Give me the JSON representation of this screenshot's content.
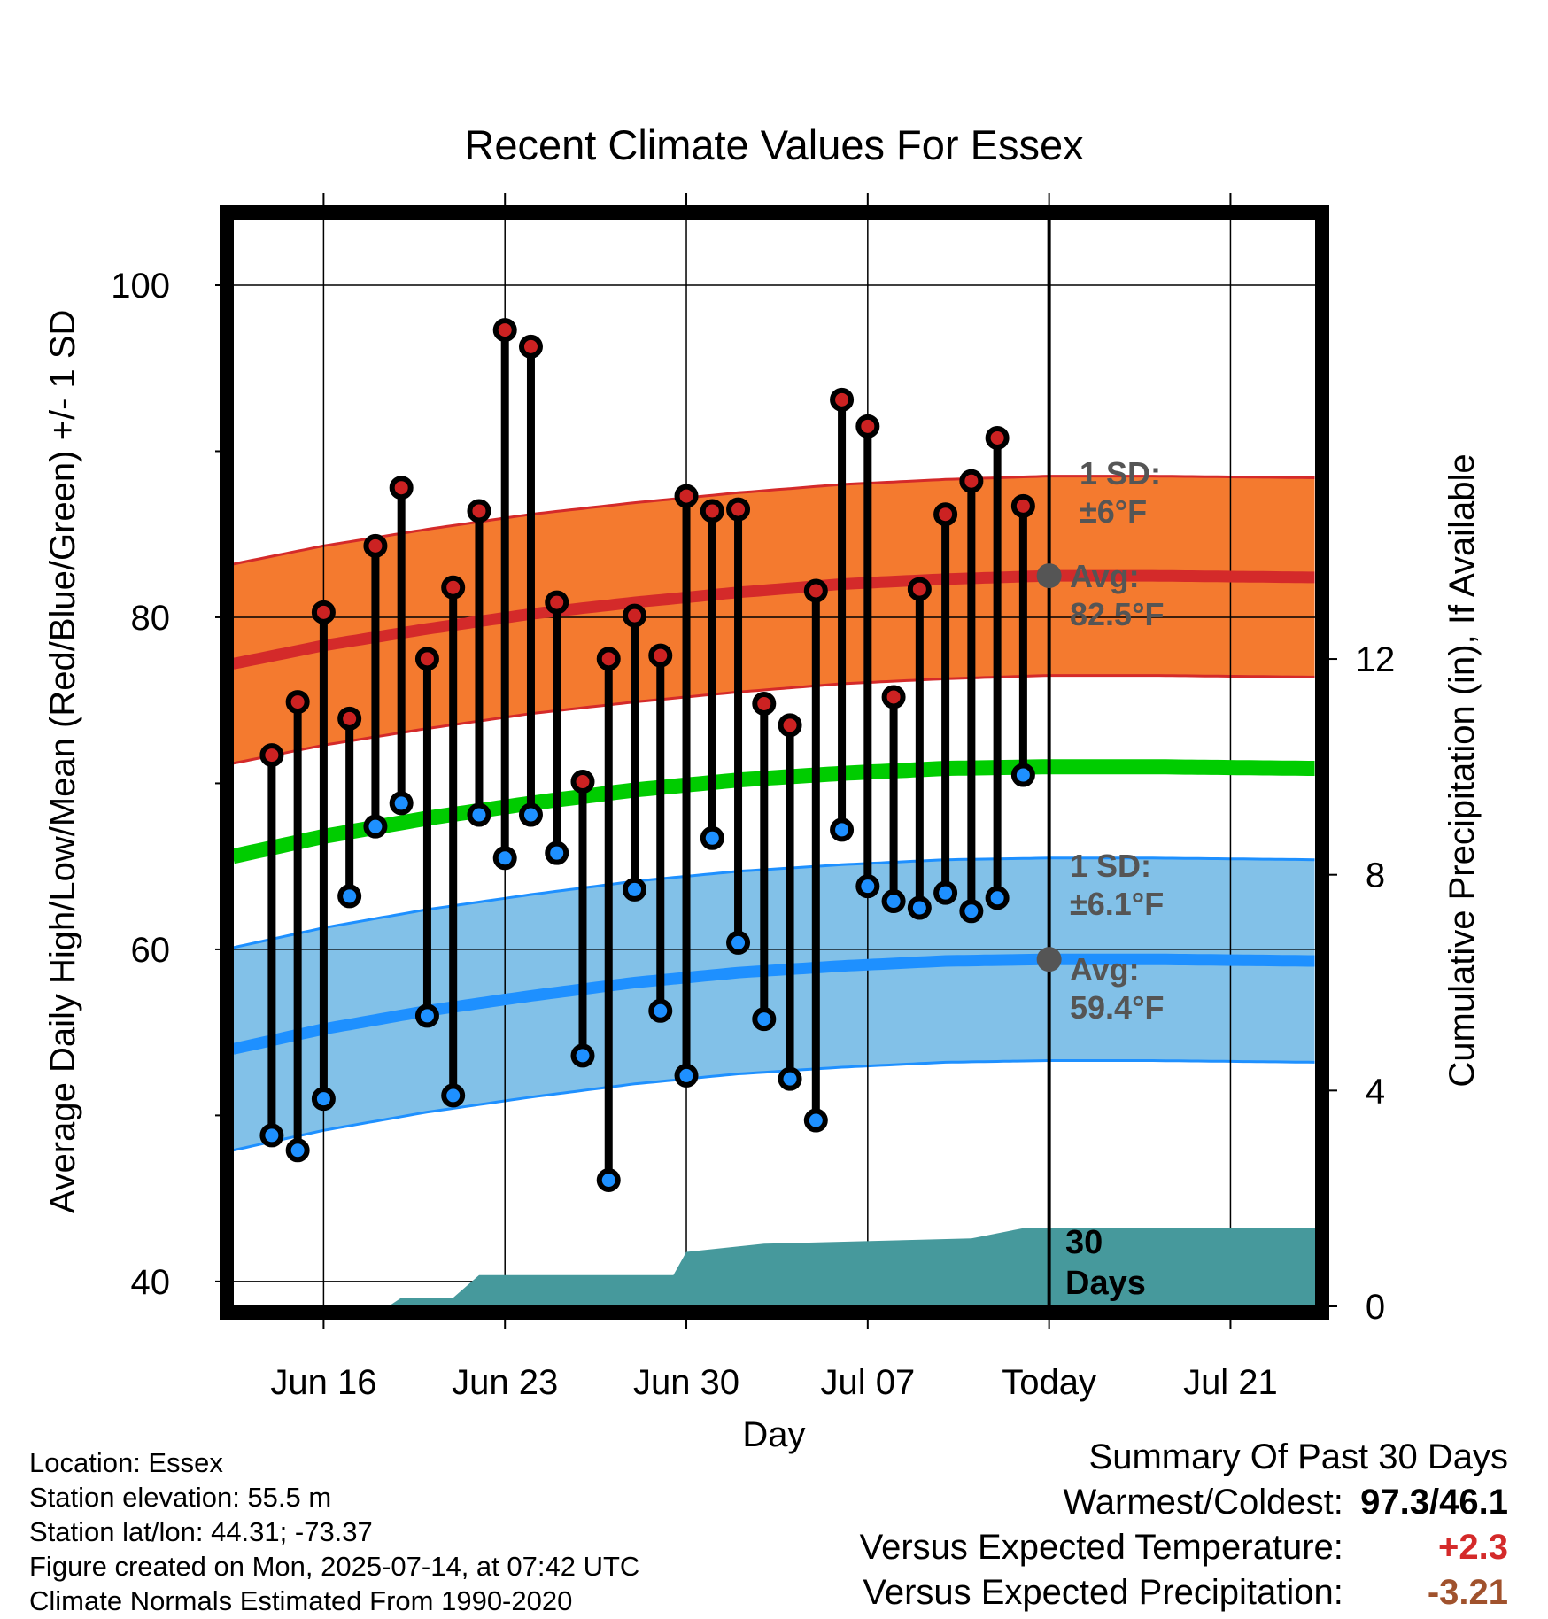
{
  "title": "Recent Climate Values For Essex",
  "chart_data": {
    "type": "line",
    "title": "Recent Climate Values For Essex",
    "xlabel": "Day",
    "ylabel_left": "Average Daily High/Low/Mean (Red/Blue/Green) +/- 1 SD",
    "ylabel_right": "Cumulative Precipitation (in), If Available",
    "x_range_days": [
      -31.5,
      10.3
    ],
    "ylim": [
      38.5,
      104
    ],
    "ylim_right": [
      0,
      20.16
    ],
    "y_ticks": [
      40,
      60,
      80,
      100
    ],
    "y_minor_ticks": [
      50,
      70,
      90
    ],
    "y_ticks_right": [
      0,
      4,
      8,
      12
    ],
    "x_tick_labels": [
      {
        "day": -28,
        "label": "Jun 16"
      },
      {
        "day": -21,
        "label": "Jun 23"
      },
      {
        "day": -14,
        "label": "Jun 30"
      },
      {
        "day": -7,
        "label": "Jul 07"
      },
      {
        "day": 0,
        "label": "Today"
      },
      {
        "day": 7,
        "label": "Jul 21"
      }
    ],
    "days": [
      -30,
      -29,
      -28,
      -27,
      -26,
      -25,
      -24,
      -23,
      -22,
      -21,
      -20,
      -19,
      -18,
      -17,
      -16,
      -15,
      -14,
      -13,
      -12,
      -11,
      -10,
      -9,
      -8,
      -7,
      -6,
      -5,
      -4,
      -3,
      -2,
      -1
    ],
    "series": [
      {
        "name": "Daily High",
        "color": "#cc2222",
        "values": [
          71.7,
          74.9,
          80.3,
          73.9,
          84.3,
          87.8,
          77.5,
          81.8,
          86.4,
          97.3,
          96.3,
          80.9,
          70.1,
          77.5,
          80.1,
          77.7,
          87.3,
          86.4,
          86.5,
          74.8,
          73.5,
          81.6,
          93.1,
          91.5,
          75.2,
          81.7,
          86.2,
          88.2,
          90.8,
          86.7
        ]
      },
      {
        "name": "Daily Low",
        "color": "#1e90ff",
        "values": [
          48.8,
          47.9,
          51.0,
          63.2,
          67.4,
          68.8,
          56.0,
          51.2,
          68.1,
          65.5,
          68.1,
          65.8,
          53.6,
          46.1,
          63.6,
          56.3,
          52.4,
          66.7,
          60.4,
          55.8,
          52.2,
          49.7,
          67.2,
          63.8,
          62.9,
          62.5,
          63.4,
          62.3,
          63.1,
          70.5
        ]
      },
      {
        "name": "Normal High",
        "color": "#cc2222",
        "days": [
          -31.5,
          -28,
          -24,
          -20,
          -16,
          -12,
          -8,
          -4,
          0,
          4,
          10.3
        ],
        "values": [
          77.2,
          78.3,
          79.3,
          80.2,
          80.9,
          81.5,
          82.0,
          82.3,
          82.5,
          82.5,
          82.4
        ],
        "sd": 6
      },
      {
        "name": "Normal Mean",
        "color": "#00cc00",
        "days": [
          -31.5,
          -28,
          -24,
          -20,
          -16,
          -12,
          -8,
          -4,
          0,
          4,
          10.3
        ],
        "values": [
          65.6,
          66.8,
          67.9,
          68.8,
          69.6,
          70.2,
          70.6,
          70.9,
          71.0,
          71.0,
          70.9
        ]
      },
      {
        "name": "Normal Low",
        "color": "#1e90ff",
        "days": [
          -31.5,
          -28,
          -24,
          -20,
          -16,
          -12,
          -8,
          -4,
          0,
          4,
          10.3
        ],
        "values": [
          54.0,
          55.2,
          56.3,
          57.2,
          58.0,
          58.6,
          59.0,
          59.3,
          59.4,
          59.4,
          59.3
        ],
        "sd": 6.1
      },
      {
        "name": "Cumulative Precipitation",
        "color": "#46999c",
        "days": [
          -31.5,
          -25.5,
          -25,
          -23,
          -22,
          -14.5,
          -14,
          -11,
          -3,
          -1,
          10.3
        ],
        "values": [
          0,
          0,
          0.16,
          0.16,
          0.58,
          0.58,
          1.01,
          1.16,
          1.26,
          1.45,
          1.45
        ]
      }
    ],
    "annotations": {
      "high_sd_label": "1 SD:",
      "high_sd_value": "±6°F",
      "high_avg_label": "Avg:",
      "high_avg_value": "82.5°F",
      "low_sd_label": "1 SD:",
      "low_sd_value": "±6.1°F",
      "low_avg_label": "Avg:",
      "low_avg_value": "59.4°F",
      "precip_label_1": "30",
      "precip_label_2": "Days"
    }
  },
  "info": {
    "location": "Location: Essex",
    "elevation": "Station elevation: 55.5 m",
    "latlon": "Station lat/lon: 44.31; -73.37",
    "created": "Figure created on Mon, 2025-07-14, at 07:42 UTC",
    "normals": "Climate Normals Estimated From 1990-2020"
  },
  "summary": {
    "heading": "Summary Of Past 30 Days",
    "warm_cold_label": "Warmest/Coldest:",
    "warm_cold_value": "97.3/46.1",
    "temp_label": "Versus Expected Temperature:",
    "temp_value": "+2.3",
    "temp_color": "#d42a2a",
    "precip_label": "Versus Expected Precipitation:",
    "precip_value": "-3.21",
    "precip_color": "#a0522d"
  }
}
